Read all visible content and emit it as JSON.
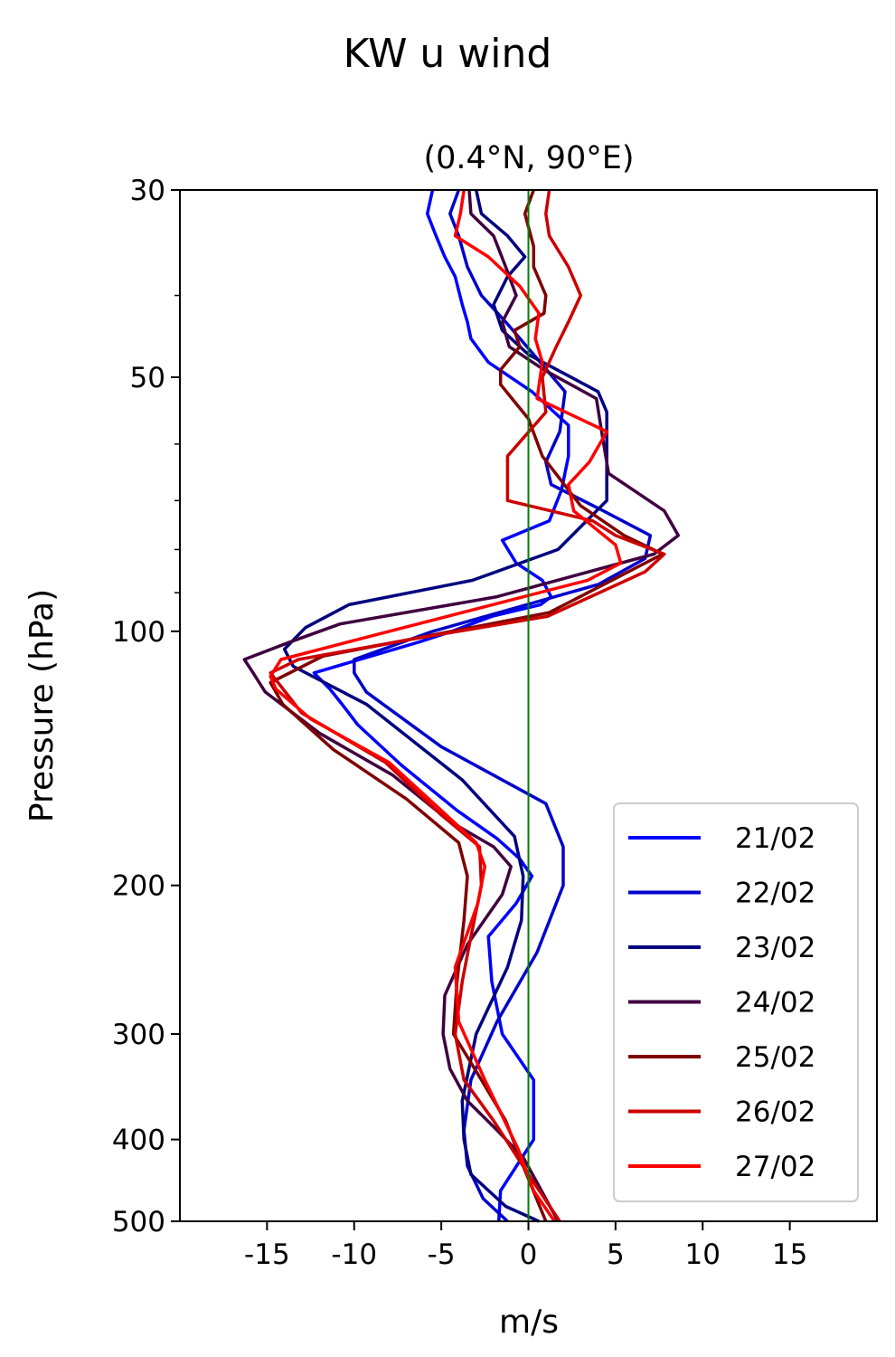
{
  "chart_data": {
    "type": "line",
    "title": "KW u wind",
    "subtitle": "(0.4°N, 90°E)",
    "xlabel": "m/s",
    "ylabel": "Pressure (hPa)",
    "xlim": [
      -20,
      20
    ],
    "ylim": [
      500,
      30
    ],
    "yscale": "log",
    "xticks": [
      -15,
      -10,
      -5,
      0,
      5,
      10,
      15
    ],
    "xtick_labels": [
      "-15",
      "-10",
      "-5",
      "0",
      "5",
      "10",
      "15"
    ],
    "yticks": [
      30,
      50,
      100,
      200,
      300,
      400,
      500
    ],
    "ytick_labels": [
      "30",
      "50",
      "100",
      "200",
      "300",
      "400",
      "500"
    ],
    "y_minor_ticks": [
      40,
      60,
      70,
      80,
      90
    ],
    "grid": false,
    "reference_line": {
      "x": 0,
      "color": "#008000"
    },
    "legend_position": "lower-right",
    "series": [
      {
        "name": "21/02",
        "color": "#0000ff",
        "x": [
          -5.5,
          -5.8,
          -5.3,
          -4.8,
          -4.2,
          -3.8,
          -3.5,
          -3.3,
          -2.3,
          0.2,
          2.3,
          2.3,
          1.9,
          1.2,
          -1.5,
          -0.7,
          0.8,
          1.3,
          0.7,
          -2.1,
          -4.4,
          -6.3,
          -12.3,
          -11.4,
          -10.7,
          -9.8,
          -7.3,
          -4.1,
          -1.8,
          -0.5,
          0.2,
          -0.7,
          -2.3,
          -2.1,
          -1.5,
          0.3,
          0.3,
          -1.6,
          -1.7
        ],
        "y": [
          30,
          32,
          34,
          36,
          38,
          41,
          43,
          45,
          48,
          52,
          57,
          62,
          68,
          74,
          78,
          83,
          87,
          91,
          93,
          96,
          100,
          103,
          112,
          117,
          122,
          129,
          144,
          163,
          176,
          186,
          195,
          210,
          230,
          260,
          300,
          340,
          400,
          460,
          500
        ]
      },
      {
        "name": "22/02",
        "color": "#0000cc",
        "x": [
          -4.0,
          -4.5,
          -4.0,
          -3.5,
          -2.7,
          -1.3,
          0.3,
          2.1,
          1.8,
          1.0,
          1.3,
          4.3,
          7.0,
          6.7,
          4.0,
          -5.5,
          -10.0,
          -10.0,
          -9.3,
          -5.0,
          1.0,
          2.0,
          2.0,
          0.5,
          -1.8,
          -3.3,
          -3.7,
          -3.5,
          -2.6,
          -1.2
        ],
        "y": [
          30,
          32,
          34,
          37,
          40,
          43,
          47,
          52,
          58,
          63,
          67,
          72,
          77,
          82,
          88,
          100,
          108,
          112,
          118,
          137,
          160,
          180,
          200,
          240,
          290,
          340,
          390,
          430,
          470,
          500
        ]
      },
      {
        "name": "23/02",
        "color": "#000080",
        "x": [
          -3.0,
          -2.7,
          -1.2,
          -0.2,
          -1.2,
          -2.0,
          -1.5,
          0.0,
          4.0,
          4.5,
          4.5,
          1.7,
          -3.2,
          -10.3,
          -12.8,
          -14.0,
          -13.5,
          -9.3,
          -3.8,
          -0.8,
          -0.3,
          -0.4,
          -1.2,
          -3.0,
          -3.8,
          -3.7,
          -3.3,
          -1.3,
          0.6
        ],
        "y": [
          30,
          32,
          34,
          36,
          38,
          41,
          44,
          47,
          52,
          55,
          70,
          80,
          87,
          93,
          99,
          105,
          110,
          122,
          150,
          175,
          195,
          220,
          250,
          300,
          360,
          400,
          440,
          480,
          500
        ]
      },
      {
        "name": "24/02",
        "color": "#400040",
        "x": [
          -3.4,
          -3.3,
          -2.0,
          -1.3,
          -0.7,
          -1.5,
          -1.1,
          0.9,
          3.9,
          4.2,
          4.6,
          7.8,
          8.6,
          7.2,
          -1.8,
          -10.8,
          -13.7,
          -16.3,
          -15.8,
          -15.1,
          -12.0,
          -7.8,
          -4.5,
          -2.0,
          -1.0,
          -1.5,
          -3.5,
          -4.8,
          -4.9,
          -4.5,
          -3.5,
          -1.8,
          -0.3,
          0.5,
          1.7
        ],
        "y": [
          30,
          32,
          34,
          37,
          40,
          43,
          46,
          49,
          53,
          58,
          65,
          72,
          77,
          81,
          91,
          98,
          103,
          108,
          112,
          118,
          132,
          148,
          168,
          180,
          190,
          205,
          235,
          270,
          300,
          330,
          360,
          390,
          420,
          450,
          500
        ]
      },
      {
        "name": "25/02",
        "color": "#800000",
        "x": [
          0.3,
          -0.2,
          0.3,
          0.3,
          1.0,
          0.9,
          -0.8,
          -0.5,
          -1.6,
          -1.6,
          0.0,
          0.8,
          3.0,
          5.5,
          7.7,
          1.2,
          -11.8,
          -14.8,
          -14.1,
          -11.2,
          -7.0,
          -4.0,
          -3.5,
          -3.7,
          -4.1,
          -4.3,
          -2.7,
          -1.3,
          -0.3,
          1.0
        ],
        "y": [
          30,
          32,
          35,
          37,
          40,
          42,
          44,
          46,
          49,
          51,
          56,
          62,
          71,
          77,
          81,
          95,
          107,
          115,
          122,
          138,
          158,
          178,
          195,
          220,
          260,
          300,
          340,
          380,
          430,
          500
        ]
      },
      {
        "name": "26/02",
        "color": "#cc0000",
        "x": [
          1.2,
          1.0,
          1.2,
          2.3,
          3.0,
          2.3,
          1.6,
          0.8,
          1.0,
          -1.2,
          -1.2,
          3.7,
          5.0,
          7.8,
          6.7,
          1.1,
          -6.5,
          -13.2,
          -14.8,
          -13.0,
          -8.2,
          -5.0,
          -2.8,
          -2.7,
          -3.3,
          -3.8,
          -4.2,
          -3.7,
          -2.0,
          0.0,
          1.8
        ],
        "y": [
          30,
          32,
          34,
          37,
          40,
          43,
          46,
          50,
          55,
          62,
          70,
          74,
          77,
          81,
          85,
          96,
          102,
          108,
          112,
          125,
          143,
          165,
          180,
          200,
          230,
          260,
          300,
          340,
          380,
          440,
          500
        ]
      },
      {
        "name": "27/02",
        "color": "#ff0000",
        "x": [
          -3.7,
          -3.9,
          -4.2,
          -2.3,
          -0.5,
          0.6,
          0.4,
          0.8,
          0.5,
          4.5,
          3.5,
          2.3,
          2.6,
          4.0,
          5.0,
          5.3,
          3.4,
          -8.0,
          -14.2,
          -14.8,
          -14.5,
          -12.5,
          -8.0,
          -5.0,
          -3.0,
          -2.5,
          -2.9,
          -4.2,
          -4.0,
          -2.5,
          -0.6,
          0.3,
          1.5
        ],
        "y": [
          30,
          32,
          34,
          36,
          39,
          42,
          45,
          48,
          53,
          58,
          63,
          67,
          72,
          76,
          79,
          83,
          87,
          100,
          108,
          113,
          117,
          127,
          143,
          163,
          178,
          190,
          210,
          250,
          290,
          340,
          410,
          460,
          500
        ]
      }
    ]
  }
}
